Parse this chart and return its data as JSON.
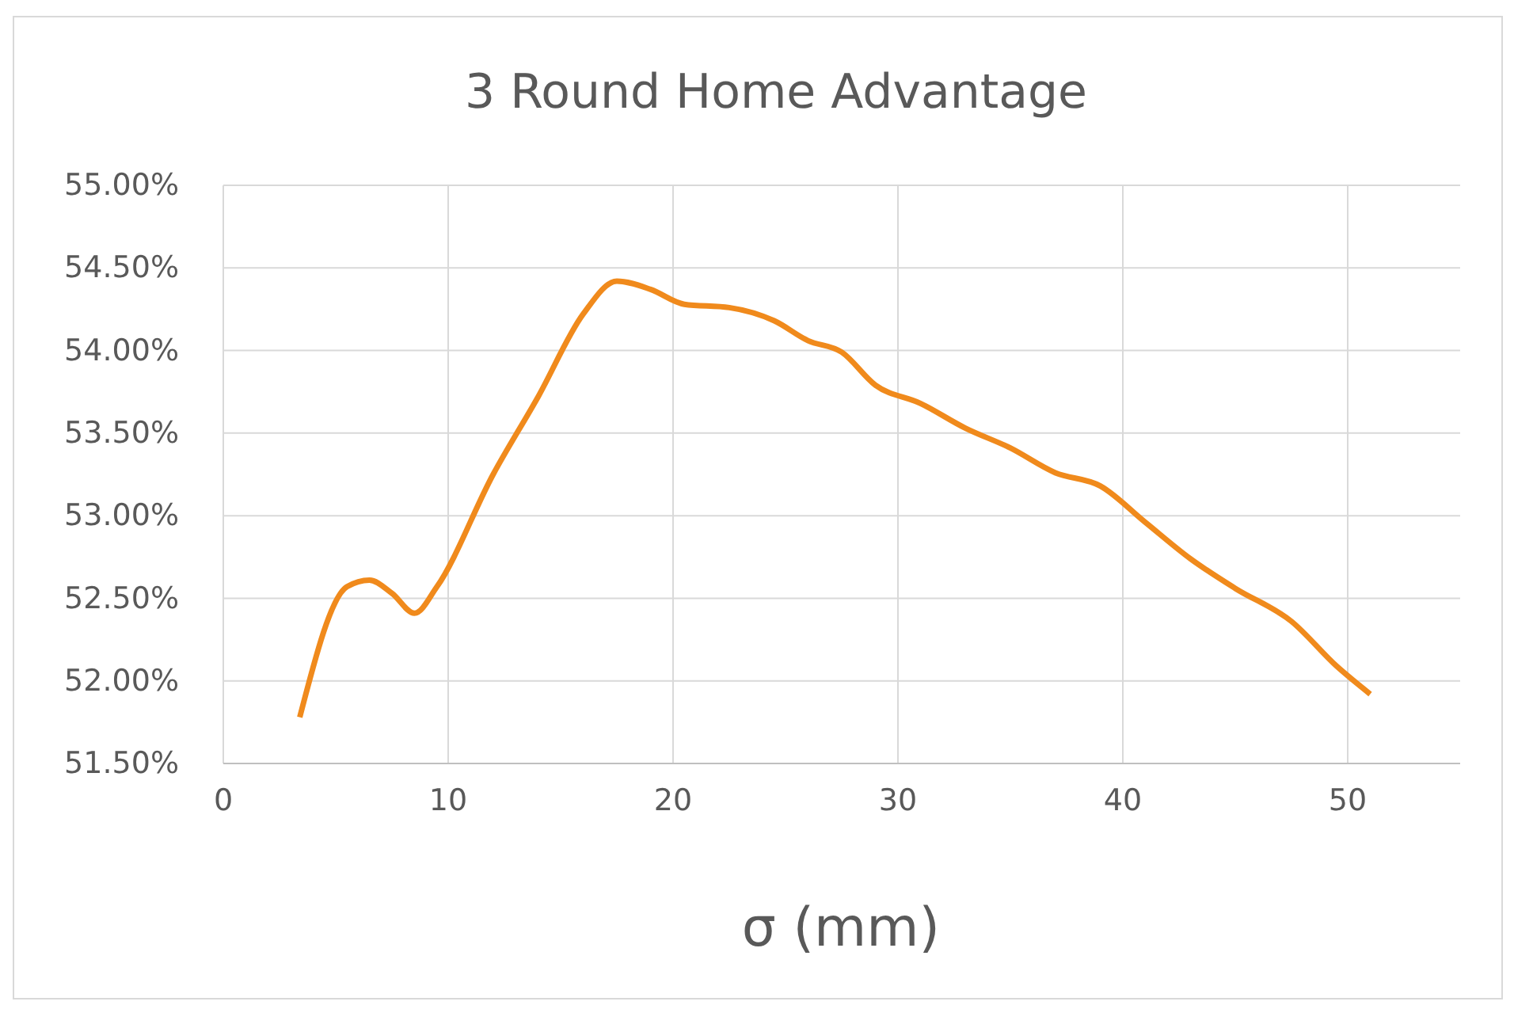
{
  "chart_data": {
    "type": "line",
    "title": "3 Round Home Advantage",
    "xlabel": "σ (mm)",
    "x": [
      3.4,
      5.5,
      6.5,
      7.5,
      8.5,
      9.5,
      12,
      14,
      16,
      17.5,
      19,
      20.5,
      22.5,
      24.5,
      26,
      27.5,
      29,
      31,
      33,
      35,
      37,
      39,
      41,
      43,
      45,
      47.5,
      49.5,
      51
    ],
    "series": [
      {
        "color": "#f08a1c",
        "values": [
          51.78,
          52.57,
          52.61,
          52.53,
          52.41,
          52.57,
          53.25,
          53.72,
          54.22,
          54.42,
          54.37,
          54.28,
          54.26,
          54.18,
          54.06,
          53.99,
          53.79,
          53.68,
          53.53,
          53.41,
          53.26,
          53.18,
          52.96,
          52.74,
          52.56,
          52.36,
          52.09,
          51.92
        ]
      }
    ],
    "xlim": [
      0,
      55
    ],
    "xticks": [
      0,
      10,
      20,
      30,
      40,
      50
    ],
    "ylim": [
      51.5,
      55
    ],
    "yticks": [
      {
        "value": 51.5,
        "label": "51.50%"
      },
      {
        "value": 52,
        "label": "52.00%"
      },
      {
        "value": 52.5,
        "label": "52.50%"
      },
      {
        "value": 53,
        "label": "53.00%"
      },
      {
        "value": 53.5,
        "label": "53.50%"
      },
      {
        "value": 54,
        "label": "54.00%"
      },
      {
        "value": 54.5,
        "label": "54.50%"
      },
      {
        "value": 55,
        "label": "55.00%"
      }
    ],
    "grid": true,
    "marker": "none",
    "line_style": "solid"
  }
}
